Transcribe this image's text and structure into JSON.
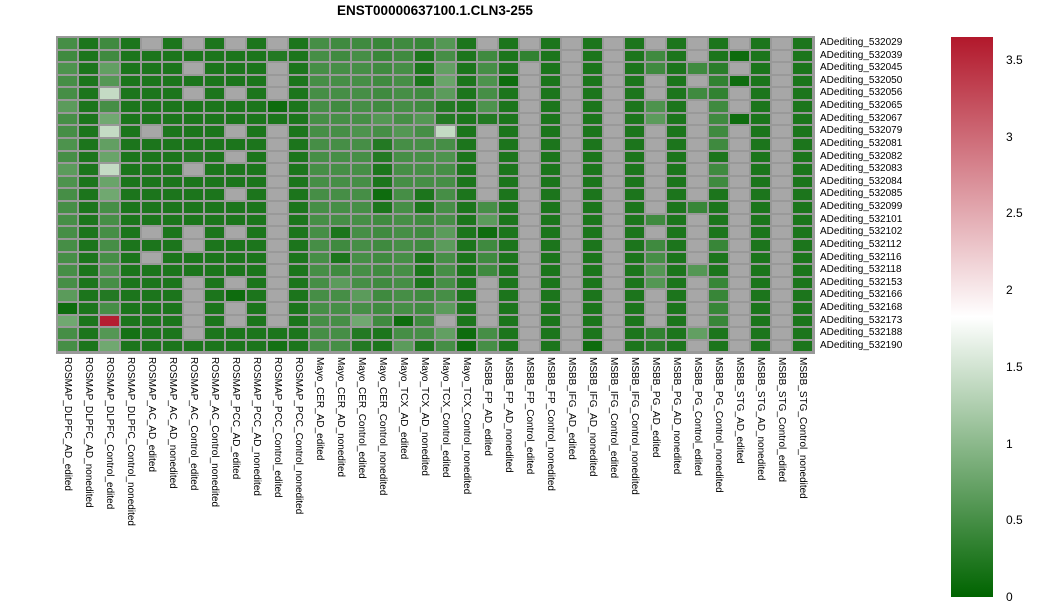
{
  "title": "ENST00000637100.1.CLN3-255",
  "chart_data": {
    "type": "heatmap",
    "title": "ENST00000637100.1.CLN3-255",
    "legend_position": "right",
    "rows": [
      "ADediting_532029",
      "ADediting_532039",
      "ADediting_532045",
      "ADediting_532050",
      "ADediting_532056",
      "ADediting_532065",
      "ADediting_532067",
      "ADediting_532079",
      "ADediting_532081",
      "ADediting_532082",
      "ADediting_532083",
      "ADediting_532084",
      "ADediting_532085",
      "ADediting_532099",
      "ADediting_532101",
      "ADediting_532102",
      "ADediting_532112",
      "ADediting_532116",
      "ADediting_532118",
      "ADediting_532153",
      "ADediting_532166",
      "ADediting_532168",
      "ADediting_532173",
      "ADediting_532188",
      "ADediting_532190"
    ],
    "columns": [
      "ROSMAP_DLPFC_AD_edited",
      "ROSMAP_DLPFC_AD_nonedited",
      "ROSMAP_DLPFC_Control_edited",
      "ROSMAP_DLPFC_Control_nonedited",
      "ROSMAP_AC_AD_edited",
      "ROSMAP_AC_AD_nonedited",
      "ROSMAP_AC_Control_edited",
      "ROSMAP_AC_Control_nonedited",
      "ROSMAP_PCC_AD_edited",
      "ROSMAP_PCC_AD_nonedited",
      "ROSMAP_PCC_Control_edited",
      "ROSMAP_PCC_Control_nonedited",
      "Mayo_CER_AD_edited",
      "Mayo_CER_AD_nonedited",
      "Mayo_CER_Control_edited",
      "Mayo_CER_Control_nonedited",
      "Mayo_TCX_AD_edited",
      "Mayo_TCX_AD_nonedited",
      "Mayo_TCX_Control_edited",
      "Mayo_TCX_Control_nonedited",
      "MSBB_FP_AD_edited",
      "MSBB_FP_AD_nonedited",
      "MSBB_FP_Control_edited",
      "MSBB_FP_Control_nonedited",
      "MSBB_IFG_AD_edited",
      "MSBB_IFG_AD_nonedited",
      "MSBB_IFG_Control_edited",
      "MSBB_IFG_Control_nonedited",
      "MSBB_PG_AD_edited",
      "MSBB_PG_AD_nonedited",
      "MSBB_PG_Control_edited",
      "MSBB_PG_Control_nonedited",
      "MSBB_STG_AD_edited",
      "MSBB_STG_AD_nonedited",
      "MSBB_STG_Control_edited",
      "MSBB_STG_Control_nonedited"
    ],
    "values": [
      [
        0.5,
        0.2,
        0.45,
        0.2,
        null,
        0.2,
        null,
        0.2,
        null,
        0.2,
        null,
        0.2,
        0.5,
        0.45,
        0.45,
        0.4,
        0.45,
        0.4,
        0.6,
        0.2,
        null,
        0.2,
        null,
        0.2,
        null,
        0.2,
        null,
        0.2,
        null,
        0.2,
        null,
        0.2,
        null,
        0.2,
        null,
        0.2
      ],
      [
        0.45,
        0.2,
        0.45,
        0.2,
        0.2,
        0.2,
        0.2,
        0.2,
        0.2,
        0.2,
        0.25,
        0.2,
        0.5,
        0.45,
        0.5,
        0.4,
        0.45,
        0.2,
        0.5,
        0.2,
        0.45,
        0.2,
        0.35,
        0.2,
        null,
        0.2,
        null,
        0.2,
        0.45,
        0.2,
        null,
        0.2,
        0.1,
        0.2,
        null,
        0.2
      ],
      [
        0.55,
        0.2,
        0.7,
        0.2,
        0.2,
        0.2,
        null,
        0.2,
        0.2,
        0.2,
        null,
        0.2,
        0.5,
        0.5,
        0.5,
        0.45,
        0.5,
        0.2,
        0.7,
        0.2,
        0.5,
        0.2,
        null,
        0.2,
        null,
        0.2,
        null,
        0.2,
        0.45,
        0.2,
        0.45,
        0.3,
        null,
        0.2,
        null,
        0.2
      ],
      [
        0.5,
        0.2,
        0.6,
        0.2,
        0.2,
        0.2,
        0.2,
        0.2,
        0.2,
        0.2,
        null,
        0.2,
        0.5,
        0.5,
        0.5,
        0.45,
        0.5,
        0.2,
        0.75,
        0.2,
        0.55,
        0.1,
        null,
        0.2,
        null,
        0.2,
        null,
        0.2,
        null,
        0.2,
        null,
        0.35,
        0.1,
        0.2,
        null,
        0.2
      ],
      [
        0.5,
        0.2,
        1.4,
        0.2,
        0.2,
        0.2,
        null,
        0.2,
        null,
        0.2,
        null,
        0.2,
        0.5,
        0.5,
        0.5,
        0.45,
        0.5,
        0.45,
        0.65,
        0.2,
        0.5,
        0.2,
        null,
        0.2,
        null,
        0.2,
        null,
        0.2,
        null,
        0.2,
        0.45,
        0.35,
        null,
        0.2,
        null,
        0.2
      ],
      [
        0.65,
        0.2,
        0.5,
        0.2,
        0.2,
        0.2,
        0.2,
        0.2,
        0.2,
        0.2,
        0.1,
        0.2,
        0.5,
        0.45,
        0.5,
        0.45,
        0.5,
        0.45,
        0.25,
        0.2,
        0.55,
        0.2,
        null,
        0.2,
        null,
        0.2,
        null,
        0.2,
        0.55,
        0.2,
        null,
        0.45,
        null,
        0.2,
        null,
        0.2
      ],
      [
        0.5,
        0.2,
        0.8,
        0.2,
        0.2,
        0.2,
        0.2,
        0.2,
        0.2,
        0.2,
        0.2,
        0.2,
        0.5,
        0.5,
        0.5,
        0.6,
        0.5,
        0.6,
        0.25,
        0.2,
        0.25,
        0.2,
        null,
        0.2,
        null,
        0.2,
        null,
        0.2,
        0.65,
        0.2,
        null,
        0.45,
        0.1,
        0.2,
        null,
        0.2
      ],
      [
        0.5,
        0.2,
        1.4,
        0.2,
        null,
        0.2,
        0.2,
        0.2,
        null,
        0.2,
        null,
        0.2,
        0.5,
        0.5,
        0.55,
        0.5,
        0.6,
        0.5,
        1.4,
        0.2,
        null,
        0.2,
        null,
        0.2,
        null,
        0.2,
        null,
        0.2,
        null,
        0.2,
        null,
        0.45,
        null,
        0.2,
        null,
        0.2
      ],
      [
        0.55,
        0.2,
        0.7,
        0.2,
        0.2,
        0.2,
        0.2,
        0.2,
        0.2,
        0.2,
        null,
        0.2,
        0.5,
        0.5,
        0.5,
        0.25,
        0.5,
        0.5,
        0.5,
        0.2,
        null,
        0.2,
        null,
        0.2,
        null,
        0.2,
        null,
        0.2,
        null,
        0.2,
        null,
        0.45,
        null,
        0.2,
        null,
        0.2
      ],
      [
        0.5,
        0.2,
        0.75,
        0.2,
        0.2,
        0.2,
        0.25,
        0.2,
        null,
        0.2,
        null,
        0.2,
        0.5,
        0.5,
        0.5,
        0.25,
        0.5,
        0.5,
        0.55,
        0.2,
        null,
        0.2,
        null,
        0.2,
        null,
        0.2,
        null,
        0.2,
        null,
        0.2,
        null,
        0.2,
        null,
        0.2,
        null,
        0.2
      ],
      [
        0.65,
        0.2,
        1.4,
        0.2,
        0.2,
        0.2,
        null,
        0.2,
        0.2,
        0.2,
        null,
        0.2,
        0.5,
        0.5,
        0.5,
        0.2,
        0.5,
        0.5,
        0.5,
        0.2,
        null,
        0.2,
        null,
        0.2,
        null,
        0.2,
        null,
        0.2,
        null,
        0.2,
        null,
        0.45,
        null,
        0.2,
        null,
        0.2
      ],
      [
        0.55,
        0.2,
        0.75,
        0.2,
        0.2,
        0.2,
        0.2,
        0.2,
        0.2,
        0.2,
        null,
        0.2,
        0.5,
        0.5,
        0.5,
        0.2,
        0.5,
        0.5,
        0.5,
        0.2,
        null,
        0.2,
        null,
        0.2,
        null,
        0.2,
        null,
        0.2,
        null,
        0.2,
        null,
        0.45,
        null,
        0.2,
        null,
        0.2
      ],
      [
        0.5,
        0.2,
        0.8,
        0.2,
        0.2,
        0.2,
        0.2,
        0.2,
        null,
        0.2,
        null,
        0.2,
        0.5,
        0.5,
        0.5,
        0.1,
        0.5,
        0.2,
        0.5,
        0.2,
        null,
        0.2,
        null,
        0.2,
        null,
        0.2,
        null,
        0.2,
        null,
        0.2,
        null,
        0.2,
        null,
        0.2,
        null,
        0.2
      ],
      [
        0.5,
        0.2,
        0.5,
        0.2,
        0.2,
        0.2,
        0.2,
        0.2,
        0.2,
        0.2,
        null,
        0.2,
        0.5,
        0.5,
        0.5,
        0.2,
        0.5,
        0.2,
        0.5,
        0.2,
        0.5,
        0.2,
        null,
        0.2,
        null,
        0.2,
        null,
        0.2,
        null,
        0.2,
        0.4,
        0.2,
        null,
        0.2,
        null,
        0.2
      ],
      [
        0.5,
        0.2,
        0.5,
        0.2,
        0.2,
        0.2,
        0.2,
        0.2,
        0.2,
        0.2,
        null,
        0.2,
        0.5,
        0.5,
        0.5,
        0.45,
        0.5,
        0.45,
        0.5,
        0.2,
        0.65,
        0.2,
        null,
        0.2,
        null,
        0.2,
        null,
        0.2,
        0.45,
        0.2,
        null,
        0.2,
        null,
        0.2,
        null,
        0.2
      ],
      [
        0.5,
        0.2,
        0.5,
        0.2,
        null,
        0.2,
        null,
        0.2,
        null,
        0.2,
        null,
        0.2,
        0.5,
        0.2,
        0.5,
        0.45,
        0.5,
        0.45,
        0.65,
        0.2,
        0.1,
        0.2,
        null,
        0.2,
        null,
        0.2,
        null,
        0.2,
        null,
        0.2,
        null,
        0.2,
        null,
        0.2,
        null,
        0.2
      ],
      [
        0.5,
        0.2,
        0.5,
        0.2,
        0.2,
        0.2,
        null,
        0.2,
        0.2,
        0.2,
        null,
        0.2,
        0.5,
        0.45,
        0.5,
        0.45,
        0.5,
        0.45,
        0.65,
        0.2,
        0.45,
        0.2,
        null,
        0.2,
        null,
        0.2,
        null,
        0.2,
        0.45,
        0.2,
        null,
        0.4,
        null,
        0.2,
        null,
        0.2
      ],
      [
        0.5,
        0.2,
        0.5,
        0.2,
        null,
        0.2,
        0.2,
        0.2,
        0.2,
        0.2,
        null,
        0.2,
        0.5,
        0.2,
        0.5,
        0.45,
        0.5,
        0.2,
        0.5,
        0.2,
        0.45,
        0.2,
        null,
        0.2,
        null,
        0.2,
        null,
        0.2,
        0.5,
        0.2,
        null,
        0.2,
        null,
        0.2,
        null,
        0.2
      ],
      [
        0.5,
        0.2,
        0.55,
        0.2,
        0.2,
        0.2,
        0.2,
        0.2,
        0.2,
        0.2,
        null,
        0.2,
        0.5,
        0.45,
        0.5,
        0.45,
        0.5,
        0.2,
        0.5,
        0.2,
        0.45,
        0.2,
        null,
        0.2,
        null,
        0.2,
        null,
        0.2,
        0.6,
        0.2,
        0.6,
        0.2,
        null,
        0.2,
        null,
        0.2
      ],
      [
        0.5,
        0.2,
        0.5,
        0.2,
        0.2,
        0.2,
        null,
        0.2,
        null,
        0.2,
        null,
        0.2,
        0.5,
        0.65,
        0.5,
        0.45,
        0.5,
        0.2,
        0.5,
        0.2,
        null,
        0.2,
        null,
        0.2,
        null,
        0.2,
        null,
        0.2,
        0.6,
        0.2,
        null,
        0.4,
        null,
        0.2,
        null,
        0.2
      ],
      [
        0.65,
        0.2,
        0.25,
        0.2,
        0.2,
        0.2,
        null,
        0.2,
        0.1,
        0.2,
        null,
        0.2,
        0.5,
        0.5,
        0.65,
        0.45,
        0.5,
        0.45,
        0.5,
        0.2,
        null,
        0.2,
        null,
        0.2,
        null,
        0.2,
        null,
        0.2,
        null,
        0.2,
        null,
        0.4,
        null,
        0.2,
        null,
        0.2
      ],
      [
        0.1,
        0.2,
        0.5,
        0.2,
        0.2,
        0.2,
        null,
        0.2,
        null,
        0.2,
        null,
        0.2,
        0.5,
        0.5,
        0.5,
        0.45,
        0.5,
        0.45,
        0.65,
        0.2,
        null,
        0.2,
        null,
        0.2,
        null,
        0.2,
        null,
        0.2,
        null,
        0.2,
        null,
        0.4,
        null,
        0.2,
        null,
        0.2
      ],
      [
        0.8,
        0.2,
        3.6,
        0.2,
        0.2,
        0.2,
        null,
        0.2,
        null,
        0.2,
        null,
        0.2,
        0.5,
        0.5,
        0.8,
        0.45,
        0.1,
        0.45,
        null,
        0.2,
        null,
        0.2,
        null,
        0.2,
        null,
        0.2,
        null,
        0.2,
        null,
        0.2,
        null,
        0.4,
        null,
        0.2,
        null,
        0.2
      ],
      [
        0.5,
        0.2,
        0.6,
        0.15,
        0.2,
        0.2,
        null,
        0.2,
        0.2,
        0.2,
        0.2,
        0.2,
        0.5,
        0.5,
        0.25,
        0.2,
        0.5,
        0.5,
        0.7,
        0.1,
        0.5,
        0.2,
        null,
        0.2,
        null,
        0.2,
        null,
        0.2,
        0.35,
        0.2,
        0.7,
        0.2,
        null,
        0.2,
        null,
        0.2
      ],
      [
        0.5,
        0.2,
        0.8,
        0.2,
        0.2,
        0.2,
        0.2,
        0.2,
        0.2,
        0.2,
        0.15,
        0.2,
        0.5,
        0.5,
        0.25,
        0.2,
        0.65,
        0.2,
        0.5,
        0.1,
        0.5,
        0.2,
        null,
        0.2,
        null,
        0.1,
        null,
        0.2,
        0.3,
        0.2,
        null,
        0.2,
        null,
        0.2,
        null,
        0.2
      ]
    ],
    "scale": {
      "min": 0,
      "max": 3.65,
      "mid": 1.825,
      "ticks": [
        0,
        0.5,
        1,
        1.5,
        2,
        2.5,
        3,
        3.5
      ],
      "low_color": "#006400",
      "mid_color": "#ffffff",
      "high_color": "#b2182b",
      "na_color": "#a7a7a7",
      "grid_color": "#999999"
    }
  }
}
